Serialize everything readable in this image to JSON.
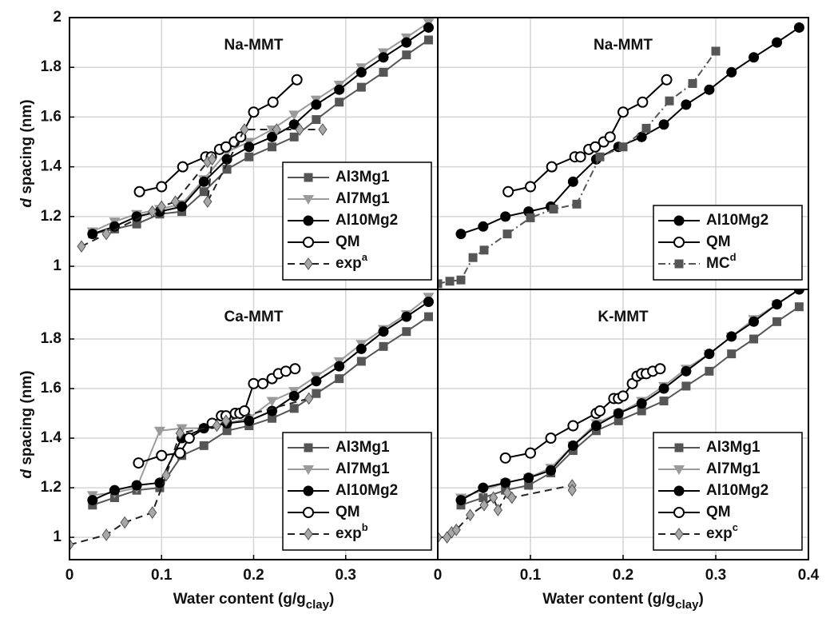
{
  "chart_data": [
    {
      "type": "line",
      "title": "Na-MMT",
      "xlim": [
        0,
        0.4
      ],
      "ylim": [
        0.907,
        2
      ],
      "yticks": [
        1,
        1.2,
        1.4,
        1.6,
        1.8,
        2
      ],
      "grid": true,
      "legend": "lower right",
      "ylabel": {
        "italic": "d",
        "text": " spacing (nm)"
      },
      "series": [
        {
          "name": "Al3Mg1",
          "color": "#555555",
          "marker": "square",
          "linestyle": "solid",
          "x": [
            0.025,
            0.049,
            0.073,
            0.098,
            0.122,
            0.146,
            0.171,
            0.195,
            0.22,
            0.244,
            0.268,
            0.293,
            0.317,
            0.341,
            0.366,
            0.39
          ],
          "values": [
            1.13,
            1.15,
            1.17,
            1.21,
            1.22,
            1.3,
            1.39,
            1.44,
            1.48,
            1.52,
            1.59,
            1.66,
            1.72,
            1.78,
            1.85,
            1.91
          ]
        },
        {
          "name": "Al7Mg1",
          "color": "#9a9a9a",
          "marker": "triangle",
          "linestyle": "solid",
          "x": [
            0.025,
            0.049,
            0.073,
            0.098,
            0.122,
            0.146,
            0.171,
            0.195,
            0.22,
            0.244,
            0.268,
            0.293,
            0.317,
            0.341,
            0.366,
            0.39
          ],
          "values": [
            1.14,
            1.18,
            1.21,
            1.23,
            1.25,
            1.35,
            1.46,
            1.5,
            1.55,
            1.61,
            1.67,
            1.73,
            1.8,
            1.86,
            1.92,
            1.98
          ]
        },
        {
          "name": "Al10Mg2",
          "color": "#000000",
          "marker": "circle",
          "linestyle": "solid",
          "x": [
            0.025,
            0.049,
            0.073,
            0.098,
            0.122,
            0.146,
            0.171,
            0.195,
            0.22,
            0.244,
            0.268,
            0.293,
            0.317,
            0.341,
            0.366,
            0.39
          ],
          "values": [
            1.13,
            1.16,
            1.2,
            1.22,
            1.24,
            1.34,
            1.43,
            1.48,
            1.52,
            1.57,
            1.65,
            1.71,
            1.78,
            1.84,
            1.9,
            1.96
          ]
        },
        {
          "name": "QM",
          "color": "#000000",
          "marker": "open-circle",
          "linestyle": "solid",
          "x": [
            0.076,
            0.1,
            0.123,
            0.148,
            0.154,
            0.163,
            0.17,
            0.179,
            0.186,
            0.2,
            0.221,
            0.247
          ],
          "values": [
            1.3,
            1.32,
            1.4,
            1.44,
            1.44,
            1.47,
            1.48,
            1.5,
            1.52,
            1.62,
            1.66,
            1.75
          ]
        },
        {
          "name": "exp",
          "sup": "a",
          "color": "#a8a8a8",
          "line_color": "#222222",
          "marker": "diamond",
          "linestyle": "dashed",
          "x": [
            0.013,
            0.04,
            0.09,
            0.1,
            0.115,
            0.15,
            0.155,
            0.15,
            0.19,
            0.225,
            0.25,
            0.275
          ],
          "values": [
            1.08,
            1.13,
            1.22,
            1.24,
            1.26,
            1.42,
            1.43,
            1.26,
            1.55,
            1.55,
            1.55,
            1.55
          ]
        }
      ]
    },
    {
      "type": "line",
      "title": "Na-MMT",
      "xlim": [
        0,
        0.4
      ],
      "ylim": [
        0.907,
        2
      ],
      "grid": true,
      "legend": "lower right",
      "series": [
        {
          "name": "Al10Mg2",
          "color": "#000000",
          "marker": "circle",
          "linestyle": "solid",
          "x": [
            0.025,
            0.049,
            0.073,
            0.098,
            0.122,
            0.146,
            0.171,
            0.195,
            0.22,
            0.244,
            0.268,
            0.293,
            0.317,
            0.341,
            0.366,
            0.39
          ],
          "values": [
            1.13,
            1.16,
            1.2,
            1.22,
            1.24,
            1.34,
            1.43,
            1.48,
            1.52,
            1.57,
            1.65,
            1.71,
            1.78,
            1.84,
            1.9,
            1.96
          ]
        },
        {
          "name": "QM",
          "color": "#000000",
          "marker": "open-circle",
          "linestyle": "solid",
          "x": [
            0.076,
            0.1,
            0.123,
            0.148,
            0.154,
            0.163,
            0.17,
            0.179,
            0.186,
            0.2,
            0.221,
            0.247
          ],
          "values": [
            1.3,
            1.32,
            1.4,
            1.44,
            1.44,
            1.47,
            1.48,
            1.5,
            1.52,
            1.62,
            1.66,
            1.75
          ]
        },
        {
          "name": "MC",
          "sup": "d",
          "color": "#555555",
          "marker": "square",
          "linestyle": "dashdot",
          "x": [
            0,
            0.013,
            0.025,
            0.038,
            0.05,
            0.075,
            0.1,
            0.125,
            0.15,
            0.175,
            0.2,
            0.225,
            0.25,
            0.275,
            0.3
          ],
          "values": [
            0.93,
            0.94,
            0.945,
            1.035,
            1.065,
            1.13,
            1.195,
            1.23,
            1.25,
            1.44,
            1.48,
            1.555,
            1.665,
            1.735,
            1.865
          ]
        }
      ]
    },
    {
      "type": "line",
      "title": "Ca-MMT",
      "xlim": [
        0,
        0.4
      ],
      "xticks": [
        0,
        0.1,
        0.2,
        0.3
      ],
      "ylim": [
        0.91,
        2
      ],
      "yticks": [
        1,
        1.2,
        1.4,
        1.6,
        1.8
      ],
      "grid": true,
      "legend": "lower right",
      "ylabel": {
        "italic": "d",
        "text": " spacing (nm)"
      },
      "xlabel": {
        "text": "Water content (g/g",
        "sub": "clay",
        "tail": ")"
      },
      "series": [
        {
          "name": "Al3Mg1",
          "color": "#555555",
          "marker": "square",
          "linestyle": "solid",
          "x": [
            0.025,
            0.049,
            0.073,
            0.098,
            0.122,
            0.146,
            0.171,
            0.195,
            0.22,
            0.244,
            0.268,
            0.293,
            0.317,
            0.341,
            0.366,
            0.39
          ],
          "values": [
            1.13,
            1.16,
            1.19,
            1.2,
            1.33,
            1.37,
            1.43,
            1.45,
            1.48,
            1.52,
            1.58,
            1.64,
            1.71,
            1.77,
            1.83,
            1.89
          ]
        },
        {
          "name": "Al7Mg1",
          "color": "#9a9a9a",
          "marker": "triangle",
          "linestyle": "solid",
          "x": [
            0.025,
            0.049,
            0.073,
            0.098,
            0.122,
            0.146,
            0.171,
            0.195,
            0.22,
            0.244,
            0.268,
            0.293,
            0.317,
            0.341,
            0.366,
            0.39
          ],
          "values": [
            1.17,
            1.18,
            1.2,
            1.43,
            1.44,
            1.44,
            1.46,
            1.48,
            1.55,
            1.59,
            1.65,
            1.71,
            1.78,
            1.84,
            1.9,
            1.97
          ]
        },
        {
          "name": "Al10Mg2",
          "color": "#000000",
          "marker": "circle",
          "linestyle": "solid",
          "x": [
            0.025,
            0.049,
            0.073,
            0.098,
            0.122,
            0.146,
            0.171,
            0.195,
            0.22,
            0.244,
            0.268,
            0.293,
            0.317,
            0.341,
            0.366,
            0.39
          ],
          "values": [
            1.15,
            1.19,
            1.21,
            1.22,
            1.4,
            1.44,
            1.46,
            1.47,
            1.51,
            1.57,
            1.63,
            1.69,
            1.76,
            1.83,
            1.89,
            1.95
          ]
        },
        {
          "name": "QM",
          "color": "#000000",
          "marker": "open-circle",
          "linestyle": "solid",
          "x": [
            0.075,
            0.1,
            0.12,
            0.13,
            0.155,
            0.165,
            0.17,
            0.18,
            0.185,
            0.19,
            0.2,
            0.21,
            0.22,
            0.227,
            0.235,
            0.245
          ],
          "values": [
            1.3,
            1.33,
            1.34,
            1.4,
            1.46,
            1.49,
            1.49,
            1.5,
            1.5,
            1.51,
            1.62,
            1.62,
            1.64,
            1.66,
            1.67,
            1.68
          ]
        },
        {
          "name": "exp",
          "sup": "b",
          "color": "#a8a8a8",
          "line_color": "#222222",
          "marker": "diamond",
          "linestyle": "dashed",
          "x": [
            0,
            0.04,
            0.06,
            0.09,
            0.105,
            0.12,
            0.16,
            0.17,
            0.26
          ],
          "values": [
            0.97,
            1.01,
            1.06,
            1.1,
            1.25,
            1.42,
            1.45,
            1.47,
            1.56
          ]
        }
      ]
    },
    {
      "type": "line",
      "title": "K-MMT",
      "xlim": [
        0,
        0.4
      ],
      "xticks": [
        0,
        0.1,
        0.2,
        0.3,
        0.4
      ],
      "ylim": [
        0.91,
        2
      ],
      "grid": true,
      "legend": "lower right",
      "xlabel": {
        "text": "Water content (g/g",
        "sub": "clay",
        "tail": ")"
      },
      "series": [
        {
          "name": "Al3Mg1",
          "color": "#555555",
          "marker": "square",
          "linestyle": "solid",
          "x": [
            0.025,
            0.049,
            0.073,
            0.098,
            0.122,
            0.146,
            0.171,
            0.195,
            0.22,
            0.244,
            0.268,
            0.293,
            0.317,
            0.341,
            0.366,
            0.39
          ],
          "values": [
            1.13,
            1.16,
            1.19,
            1.21,
            1.26,
            1.35,
            1.43,
            1.47,
            1.51,
            1.55,
            1.61,
            1.67,
            1.74,
            1.8,
            1.87,
            1.93
          ]
        },
        {
          "name": "Al7Mg1",
          "color": "#9a9a9a",
          "marker": "triangle",
          "linestyle": "solid",
          "x": [
            0.025,
            0.049,
            0.073,
            0.098,
            0.122,
            0.146,
            0.171,
            0.195,
            0.22,
            0.244,
            0.268,
            0.293,
            0.317,
            0.341,
            0.366,
            0.39
          ],
          "values": [
            1.16,
            1.19,
            1.22,
            1.24,
            1.28,
            1.37,
            1.46,
            1.5,
            1.55,
            1.61,
            1.68,
            1.74,
            1.81,
            1.88,
            1.94,
            2.0
          ]
        },
        {
          "name": "Al10Mg2",
          "color": "#000000",
          "marker": "circle",
          "linestyle": "solid",
          "x": [
            0.025,
            0.049,
            0.073,
            0.098,
            0.122,
            0.146,
            0.171,
            0.195,
            0.22,
            0.244,
            0.268,
            0.293,
            0.317,
            0.341,
            0.366,
            0.39
          ],
          "values": [
            1.15,
            1.2,
            1.22,
            1.24,
            1.27,
            1.37,
            1.45,
            1.5,
            1.54,
            1.6,
            1.67,
            1.74,
            1.81,
            1.87,
            1.94,
            2.0
          ]
        },
        {
          "name": "QM",
          "color": "#000000",
          "marker": "open-circle",
          "linestyle": "solid",
          "x": [
            0.073,
            0.1,
            0.122,
            0.146,
            0.171,
            0.175,
            0.19,
            0.195,
            0.2,
            0.21,
            0.215,
            0.22,
            0.225,
            0.232,
            0.24
          ],
          "values": [
            1.32,
            1.34,
            1.4,
            1.45,
            1.5,
            1.51,
            1.56,
            1.56,
            1.57,
            1.62,
            1.65,
            1.66,
            1.66,
            1.67,
            1.68
          ]
        },
        {
          "name": "exp",
          "sup": "c",
          "color": "#a8a8a8",
          "line_color": "#222222",
          "marker": "diamond",
          "linestyle": "dashed",
          "x": [
            0,
            0.01,
            0.015,
            0.02,
            0.035,
            0.05,
            0.06,
            0.065,
            0.075,
            0.08,
            0.145,
            0.145
          ],
          "values": [
            1.0,
            1.0,
            1.02,
            1.03,
            1.09,
            1.13,
            1.16,
            1.11,
            1.18,
            1.16,
            1.21,
            1.19
          ]
        }
      ]
    }
  ]
}
